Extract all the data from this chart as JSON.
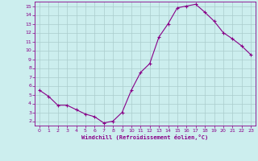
{
  "x": [
    0,
    1,
    2,
    3,
    4,
    5,
    6,
    7,
    8,
    9,
    10,
    11,
    12,
    13,
    14,
    15,
    16,
    17,
    18,
    19,
    20,
    21,
    22,
    23
  ],
  "y": [
    5.5,
    4.8,
    3.8,
    3.8,
    3.3,
    2.8,
    2.5,
    1.8,
    2.0,
    3.0,
    5.5,
    7.5,
    8.5,
    11.5,
    13.0,
    14.8,
    15.0,
    15.2,
    14.3,
    13.3,
    12.0,
    11.3,
    10.5,
    9.5
  ],
  "line_color": "#880088",
  "marker": "+",
  "marker_size": 3,
  "background_color": "#cceeee",
  "grid_color": "#aacccc",
  "xlabel": "Windchill (Refroidissement éolien,°C)",
  "tick_color": "#880088",
  "xlim_min": -0.5,
  "xlim_max": 23.5,
  "ylim_min": 1.5,
  "ylim_max": 15.5,
  "yticks": [
    2,
    3,
    4,
    5,
    6,
    7,
    8,
    9,
    10,
    11,
    12,
    13,
    14,
    15
  ],
  "xticks": [
    0,
    1,
    2,
    3,
    4,
    5,
    6,
    7,
    8,
    9,
    10,
    11,
    12,
    13,
    14,
    15,
    16,
    17,
    18,
    19,
    20,
    21,
    22,
    23
  ]
}
